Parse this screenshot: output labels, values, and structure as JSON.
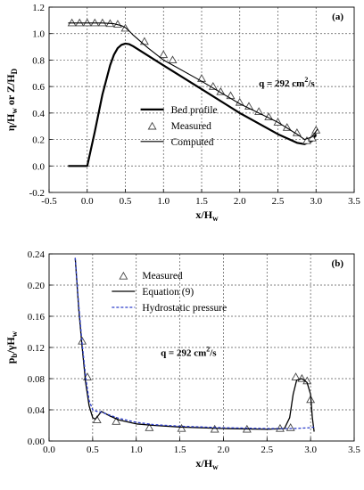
{
  "chart_data": [
    {
      "type": "line",
      "panel_label": "(a)",
      "ylabel": "η/H",
      "ylabel_sub": "w",
      "ylabel_mid": " or Z/H",
      "ylabel_sub2": "D",
      "xlabel": "x/H",
      "xlabel_sub": "w",
      "xlim": [
        -0.5,
        3.5
      ],
      "ylim": [
        -0.2,
        1.2
      ],
      "xticks": [
        -0.5,
        0,
        0.5,
        1,
        1.5,
        2,
        2.5,
        3,
        3.5
      ],
      "xtick_labels": [
        "-0.5",
        "0.0",
        "0.5",
        "1.0",
        "1.5",
        "2.0",
        "2.5",
        "3.0",
        "3.5"
      ],
      "yticks": [
        -0.2,
        0,
        0.2,
        0.4,
        0.6,
        0.8,
        1.0,
        1.2
      ],
      "ytick_labels": [
        "-0.2",
        "0.0",
        "0.2",
        "0.4",
        "0.6",
        "0.8",
        "1.0",
        "1.2"
      ],
      "grid": true,
      "annotation": {
        "q_text": "q = 292 cm",
        "sup": "2",
        "tail": "/s",
        "at": [
          2.25,
          0.6
        ]
      },
      "legend": {
        "placement": "bottom-right",
        "entries": [
          "Bed profile",
          "Measured",
          "Computed"
        ]
      },
      "series": [
        {
          "name": "Bed profile",
          "style": "thick-line",
          "x": [
            -0.25,
            0.0,
            0.1,
            0.2,
            0.3,
            0.35,
            0.4,
            0.45,
            0.5,
            0.55,
            0.6,
            1.0,
            1.5,
            2.0,
            2.5,
            2.75,
            2.85,
            2.95,
            3.0
          ],
          "y": [
            0.0,
            0.0,
            0.26,
            0.54,
            0.76,
            0.84,
            0.89,
            0.915,
            0.925,
            0.92,
            0.905,
            0.76,
            0.58,
            0.4,
            0.24,
            0.175,
            0.165,
            0.19,
            0.24
          ]
        },
        {
          "name": "Measured",
          "style": "triangle-markers",
          "x": [
            -0.2,
            -0.1,
            0.0,
            0.1,
            0.2,
            0.3,
            0.4,
            0.5,
            0.75,
            1.0,
            1.12,
            1.5,
            1.65,
            1.75,
            1.88,
            2.0,
            2.12,
            2.25,
            2.38,
            2.5,
            2.62,
            2.75,
            2.88,
            2.95,
            3.0
          ],
          "y": [
            1.08,
            1.08,
            1.08,
            1.08,
            1.08,
            1.075,
            1.07,
            1.04,
            0.94,
            0.84,
            0.8,
            0.66,
            0.6,
            0.56,
            0.53,
            0.48,
            0.45,
            0.41,
            0.37,
            0.33,
            0.29,
            0.25,
            0.19,
            0.21,
            0.27
          ]
        },
        {
          "name": "Computed",
          "style": "thin-line",
          "x": [
            -0.25,
            0.0,
            0.2,
            0.35,
            0.45,
            0.5,
            0.55,
            0.6,
            0.8,
            1.0,
            1.5,
            2.0,
            2.5,
            2.75,
            2.85,
            2.95,
            3.02
          ],
          "y": [
            1.08,
            1.08,
            1.08,
            1.075,
            1.06,
            1.045,
            1.02,
            0.99,
            0.89,
            0.8,
            0.64,
            0.47,
            0.33,
            0.24,
            0.2,
            0.22,
            0.28
          ]
        }
      ]
    },
    {
      "type": "line",
      "panel_label": "(b)",
      "ylabel": "p",
      "ylabel_sub": "b",
      "ylabel_mid": "/γH",
      "ylabel_sub2": "w",
      "xlabel": "x/H",
      "xlabel_sub": "w",
      "xlim": [
        0,
        3.5
      ],
      "ylim": [
        0,
        0.24
      ],
      "xticks": [
        0,
        0.5,
        1,
        1.5,
        2,
        2.5,
        3,
        3.5
      ],
      "xtick_labels": [
        "0.0",
        "0.5",
        "1.0",
        "1.5",
        "2.0",
        "2.5",
        "3.0",
        "3.5"
      ],
      "yticks": [
        0,
        0.04,
        0.08,
        0.12,
        0.16,
        0.2,
        0.24
      ],
      "ytick_labels": [
        "0.00",
        "0.04",
        "0.08",
        "0.12",
        "0.16",
        "0.20",
        "0.24"
      ],
      "grid": true,
      "annotation": {
        "q_text": "q = 292 cm",
        "sup": "2",
        "tail": "/s",
        "at": [
          1.28,
          0.109
        ]
      },
      "legend": {
        "placement": "top-center",
        "entries": [
          "Measured",
          "Equation (9)",
          "Hydrostatic pressure"
        ]
      },
      "series": [
        {
          "name": "Measured",
          "style": "triangle-markers",
          "x": [
            0.38,
            0.44,
            0.55,
            0.77,
            1.15,
            1.52,
            1.9,
            2.27,
            2.65,
            2.77,
            2.83,
            2.9,
            2.96,
            3.0
          ],
          "y": [
            0.128,
            0.082,
            0.027,
            0.025,
            0.017,
            0.016,
            0.015,
            0.015,
            0.016,
            0.017,
            0.082,
            0.08,
            0.077,
            0.053
          ]
        },
        {
          "name": "Equation (9)",
          "style": "solid-line",
          "x": [
            0.3,
            0.34,
            0.38,
            0.42,
            0.46,
            0.5,
            0.53,
            0.56,
            0.6,
            0.7,
            0.8,
            1.0,
            1.2,
            1.5,
            2.0,
            2.5,
            2.7,
            2.76,
            2.8,
            2.84,
            2.9,
            2.96,
            3.0,
            3.02,
            3.04
          ],
          "y": [
            0.235,
            0.17,
            0.12,
            0.075,
            0.045,
            0.03,
            0.028,
            0.032,
            0.038,
            0.032,
            0.027,
            0.022,
            0.02,
            0.018,
            0.016,
            0.015,
            0.016,
            0.03,
            0.06,
            0.078,
            0.08,
            0.075,
            0.06,
            0.03,
            0.012
          ]
        },
        {
          "name": "Hydrostatic pressure",
          "style": "dashed-line",
          "x": [
            0.3,
            0.34,
            0.38,
            0.42,
            0.46,
            0.5,
            0.55,
            0.6,
            0.7,
            0.8,
            1.0,
            1.2,
            1.5,
            2.0,
            2.5,
            2.8,
            3.0,
            3.04
          ],
          "y": [
            0.235,
            0.175,
            0.125,
            0.082,
            0.052,
            0.04,
            0.038,
            0.037,
            0.033,
            0.029,
            0.024,
            0.021,
            0.019,
            0.017,
            0.016,
            0.016,
            0.017,
            0.018
          ]
        }
      ]
    }
  ]
}
